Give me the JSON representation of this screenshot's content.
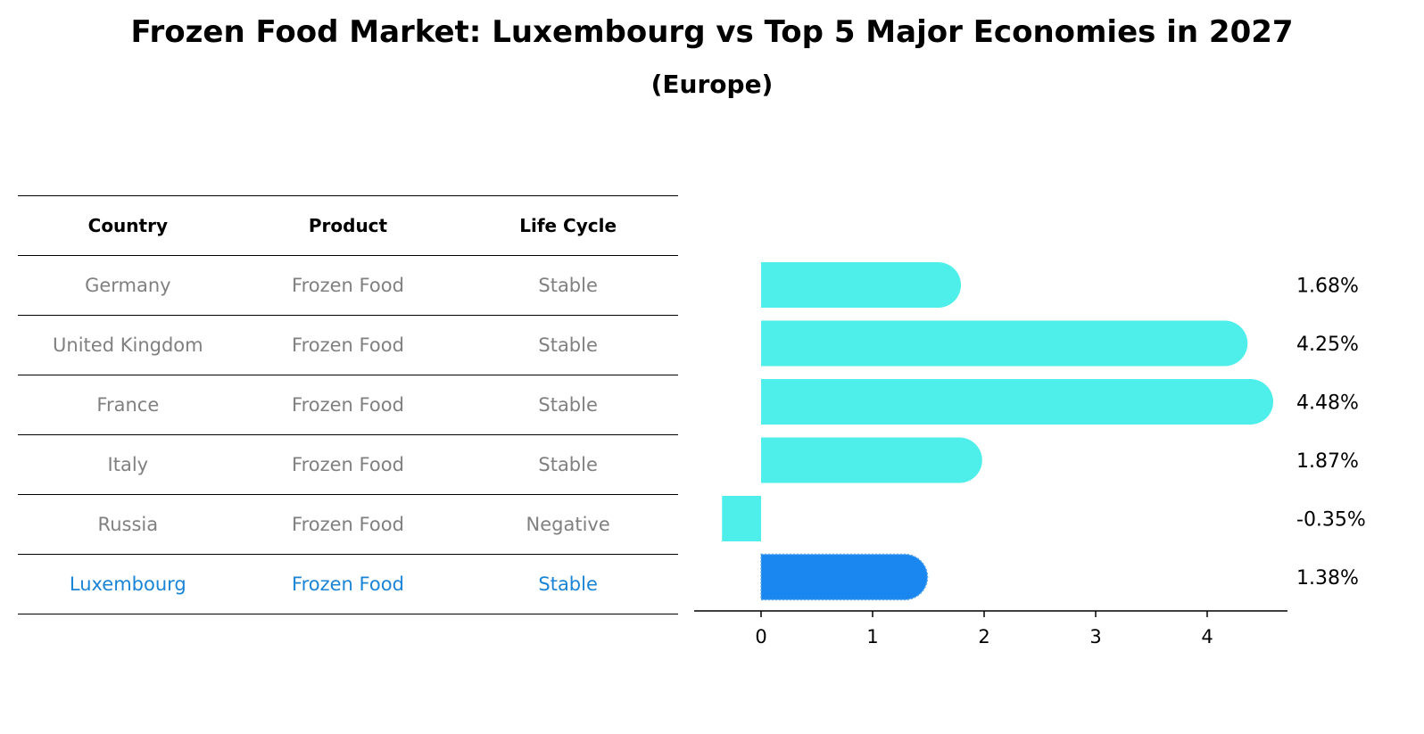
{
  "title": "Frozen Food Market: Luxembourg vs Top 5 Major Economies in 2027",
  "subtitle": "(Europe)",
  "table": {
    "headers": [
      "Country",
      "Product",
      "Life Cycle"
    ],
    "rows": [
      [
        "Germany",
        "Frozen Food",
        "Stable"
      ],
      [
        "United Kingdom",
        "Frozen Food",
        "Stable"
      ],
      [
        "France",
        "Frozen Food",
        "Stable"
      ],
      [
        "Italy",
        "Frozen Food",
        "Stable"
      ],
      [
        "Russia",
        "Frozen Food",
        "Negative"
      ],
      [
        "Luxembourg",
        "Frozen Food",
        "Stable"
      ]
    ],
    "highlight_row": 5
  },
  "colors": {
    "bar": "#4eeeea",
    "highlight_bar": "#1a87f0",
    "highlight_text": "#1a84d6",
    "muted_text": "#808080"
  },
  "chart_data": {
    "type": "bar",
    "orientation": "horizontal",
    "categories": [
      "Germany",
      "United Kingdom",
      "France",
      "Italy",
      "Russia",
      "Luxembourg"
    ],
    "values": [
      1.68,
      4.25,
      4.48,
      1.87,
      -0.35,
      1.38
    ],
    "value_labels": [
      "1.68%",
      "4.25%",
      "4.48%",
      "1.87%",
      "-0.35%",
      "1.38%"
    ],
    "highlight_index": 5,
    "xlim": [
      -0.6,
      4.72
    ],
    "xticks": [
      0,
      1,
      2,
      3,
      4
    ],
    "xlabel": "",
    "ylabel": ""
  }
}
